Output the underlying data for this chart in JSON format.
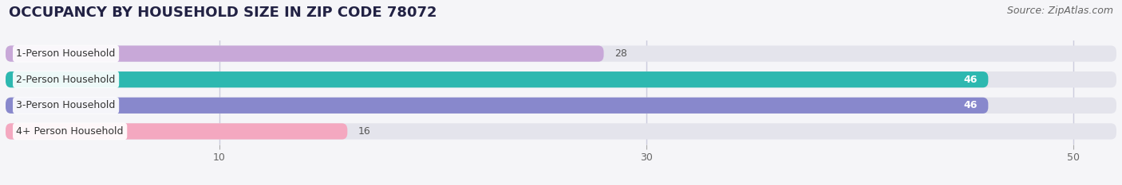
{
  "title": "OCCUPANCY BY HOUSEHOLD SIZE IN ZIP CODE 78072",
  "source": "Source: ZipAtlas.com",
  "categories": [
    "1-Person Household",
    "2-Person Household",
    "3-Person Household",
    "4+ Person Household"
  ],
  "values": [
    28,
    46,
    46,
    16
  ],
  "bar_colors": [
    "#c8a8d8",
    "#2db8b0",
    "#8888cc",
    "#f4a8c0"
  ],
  "bar_bg_color": "#e4e4ec",
  "xlim": [
    0,
    52
  ],
  "xticks": [
    10,
    30,
    50
  ],
  "label_color_inside": "#ffffff",
  "label_color_outside": "#555555",
  "title_fontsize": 13,
  "source_fontsize": 9,
  "bar_label_fontsize": 9,
  "category_fontsize": 9,
  "tick_fontsize": 9,
  "bar_height": 0.62,
  "background_color": "#f5f5f8",
  "inside_threshold": 35,
  "label_pill_color": "#ffffff",
  "label_text_color": "#333333",
  "grid_color": "#ccccdd"
}
